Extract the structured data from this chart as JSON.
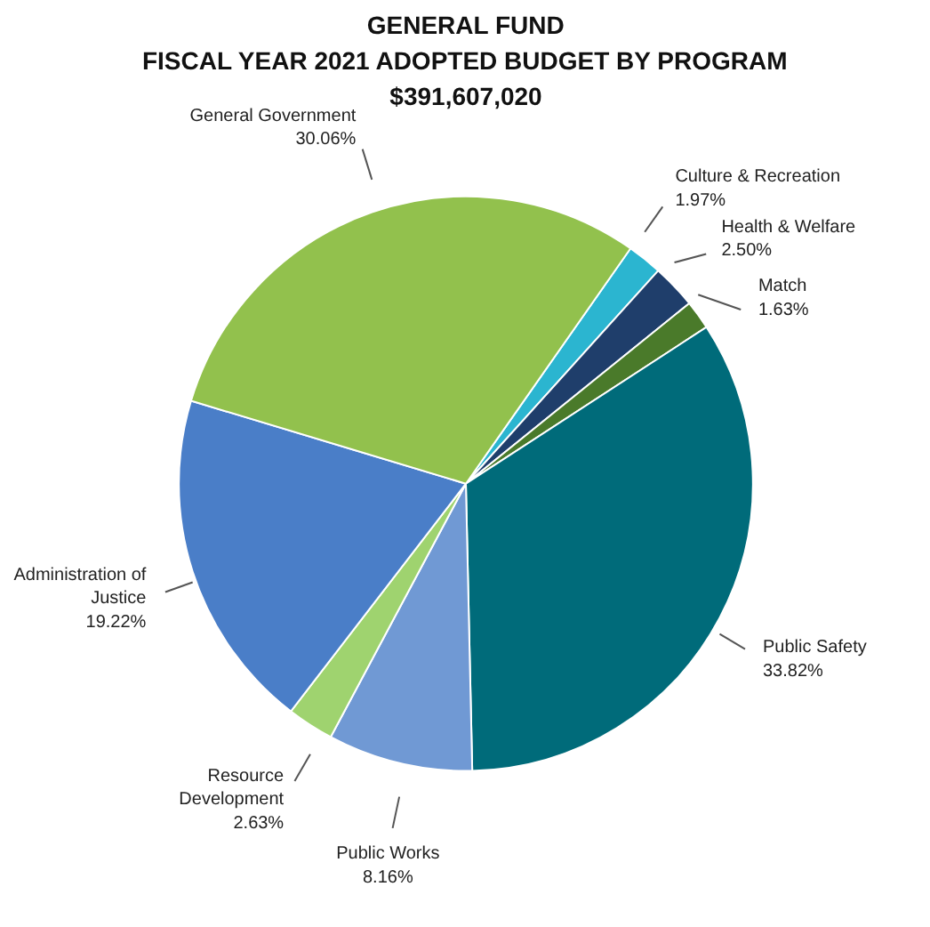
{
  "chart_data": {
    "type": "pie",
    "title": "GENERAL FUND\nFISCAL YEAR 2021 ADOPTED BUDGET BY PROGRAM",
    "subtitle": "$391,607,020",
    "categories": [
      "Culture & Recreation",
      "Health & Welfare",
      "Match",
      "Public Safety",
      "Public Works",
      "Resource\nDevelopment",
      "Administration of\nJustice",
      "General Government"
    ],
    "values": [
      1.97,
      2.5,
      1.63,
      33.82,
      8.16,
      2.63,
      19.22,
      30.06
    ],
    "value_labels": [
      "1.97%",
      "2.50%",
      "1.63%",
      "33.82%",
      "8.16%",
      "2.63%",
      "19.22%",
      "30.06%"
    ],
    "colors": [
      "#2bb5d0",
      "#1f3e6b",
      "#4a7a2a",
      "#006b7a",
      "#7099d4",
      "#9fd36f",
      "#4a7ec8",
      "#92c14d"
    ]
  }
}
